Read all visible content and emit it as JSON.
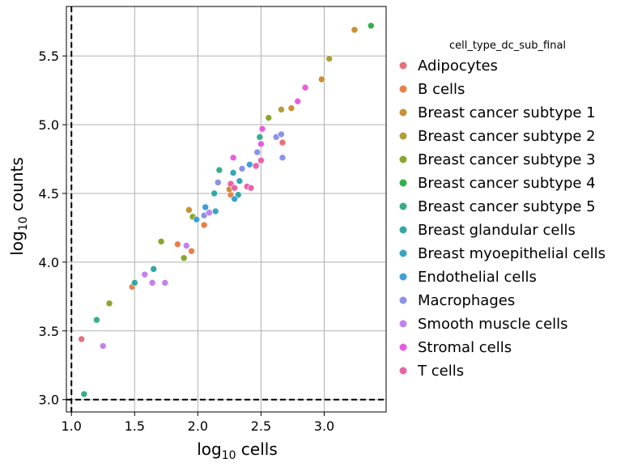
{
  "chart_data": {
    "type": "scatter",
    "xlabel_main": "log",
    "xlabel_sub": "10",
    "xlabel_rest": " cells",
    "ylabel_main": "log",
    "ylabel_sub": "10",
    "ylabel_rest": " counts",
    "xlim": [
      0.96,
      3.49
    ],
    "ylim": [
      2.91,
      5.86
    ],
    "x_ticks": [
      1.0,
      1.5,
      2.0,
      2.5,
      3.0
    ],
    "x_tick_labels": [
      "1.0",
      "1.5",
      "2.0",
      "2.5",
      "3.0"
    ],
    "y_ticks": [
      3.0,
      3.5,
      4.0,
      4.5,
      5.0,
      5.5
    ],
    "y_tick_labels": [
      "3.0",
      "3.5",
      "4.0",
      "4.5",
      "5.0",
      "5.5"
    ],
    "grid": true,
    "reference_lines": [
      {
        "orientation": "vertical",
        "value": 1.0,
        "style": "dashed"
      },
      {
        "orientation": "horizontal",
        "value": 3.0,
        "style": "dashed"
      }
    ],
    "legend": {
      "title": "cell_type_dc_sub_final",
      "placement": "right, outside plot"
    },
    "series": [
      {
        "name": "Adipocytes",
        "color": "#e8707b",
        "points": [
          [
            1.08,
            3.44
          ],
          [
            2.67,
            4.87
          ]
        ]
      },
      {
        "name": "B cells",
        "color": "#e8804a",
        "points": [
          [
            1.48,
            3.82
          ],
          [
            1.84,
            4.13
          ],
          [
            1.95,
            4.08
          ],
          [
            2.05,
            4.27
          ],
          [
            2.26,
            4.49
          ]
        ]
      },
      {
        "name": "Breast cancer subtype 1",
        "color": "#c99034",
        "points": [
          [
            1.93,
            4.38
          ],
          [
            2.25,
            4.53
          ],
          [
            2.74,
            5.12
          ],
          [
            2.98,
            5.33
          ],
          [
            3.24,
            5.69
          ]
        ]
      },
      {
        "name": "Breast cancer subtype 2",
        "color": "#b29d38",
        "points": [
          [
            2.66,
            5.11
          ],
          [
            3.04,
            5.48
          ]
        ]
      },
      {
        "name": "Breast cancer subtype 3",
        "color": "#89a62f",
        "points": [
          [
            1.3,
            3.7
          ],
          [
            1.71,
            4.15
          ],
          [
            1.89,
            4.03
          ],
          [
            1.96,
            4.33
          ],
          [
            2.56,
            5.05
          ]
        ]
      },
      {
        "name": "Breast cancer subtype 4",
        "color": "#34b04a",
        "points": [
          [
            3.37,
            5.72
          ]
        ]
      },
      {
        "name": "Breast cancer subtype 5",
        "color": "#37ad8b",
        "points": [
          [
            1.1,
            3.04
          ],
          [
            1.2,
            3.58
          ],
          [
            2.17,
            4.67
          ],
          [
            2.49,
            4.91
          ]
        ]
      },
      {
        "name": "Breast glandular cells",
        "color": "#32a8a2",
        "points": [
          [
            1.5,
            3.85
          ],
          [
            1.65,
            3.95
          ],
          [
            2.13,
            4.5
          ],
          [
            2.32,
            4.49
          ]
        ]
      },
      {
        "name": "Breast myoepithelial cells",
        "color": "#35a6bd",
        "points": [
          [
            2.14,
            4.37
          ],
          [
            2.28,
            4.65
          ],
          [
            2.33,
            4.59
          ]
        ]
      },
      {
        "name": "Endothelial cells",
        "color": "#3d9fd8",
        "points": [
          [
            1.99,
            4.31
          ],
          [
            2.06,
            4.4
          ],
          [
            2.29,
            4.46
          ],
          [
            2.41,
            4.71
          ]
        ]
      },
      {
        "name": "Macrophages",
        "color": "#8a93e6",
        "points": [
          [
            2.05,
            4.34
          ],
          [
            2.16,
            4.58
          ],
          [
            2.35,
            4.68
          ],
          [
            2.47,
            4.8
          ],
          [
            2.62,
            4.91
          ],
          [
            2.66,
            4.93
          ],
          [
            2.67,
            4.76
          ]
        ]
      },
      {
        "name": "Smooth muscle cells",
        "color": "#c281ec",
        "points": [
          [
            1.25,
            3.39
          ],
          [
            1.58,
            3.91
          ],
          [
            1.64,
            3.85
          ],
          [
            1.74,
            3.85
          ],
          [
            1.91,
            4.12
          ],
          [
            2.09,
            4.36
          ]
        ]
      },
      {
        "name": "Stromal cells",
        "color": "#e85de0",
        "points": [
          [
            2.28,
            4.76
          ],
          [
            2.5,
            4.86
          ],
          [
            2.51,
            4.97
          ],
          [
            2.79,
            5.17
          ],
          [
            2.85,
            5.27
          ]
        ]
      },
      {
        "name": "T cells",
        "color": "#ea63a8",
        "points": [
          [
            2.26,
            4.57
          ],
          [
            2.29,
            4.54
          ],
          [
            2.39,
            4.55
          ],
          [
            2.42,
            4.54
          ],
          [
            2.46,
            4.7
          ],
          [
            2.5,
            4.74
          ]
        ]
      }
    ]
  }
}
